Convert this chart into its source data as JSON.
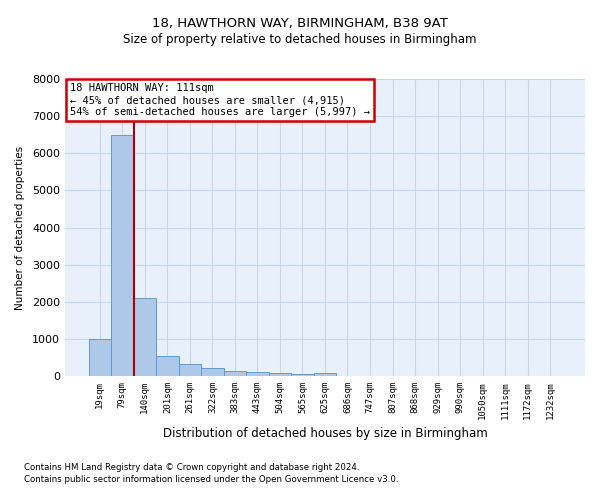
{
  "title1": "18, HAWTHORN WAY, BIRMINGHAM, B38 9AT",
  "title2": "Size of property relative to detached houses in Birmingham",
  "xlabel": "Distribution of detached houses by size in Birmingham",
  "ylabel": "Number of detached properties",
  "footnote1": "Contains HM Land Registry data © Crown copyright and database right 2024.",
  "footnote2": "Contains public sector information licensed under the Open Government Licence v3.0.",
  "annotation_title": "18 HAWTHORN WAY: 111sqm",
  "annotation_line1": "← 45% of detached houses are smaller (4,915)",
  "annotation_line2": "54% of semi-detached houses are larger (5,997) →",
  "bar_categories": [
    "19sqm",
    "79sqm",
    "140sqm",
    "201sqm",
    "261sqm",
    "322sqm",
    "383sqm",
    "443sqm",
    "504sqm",
    "565sqm",
    "625sqm",
    "686sqm",
    "747sqm",
    "807sqm",
    "868sqm",
    "929sqm",
    "990sqm",
    "1050sqm",
    "1111sqm",
    "1172sqm",
    "1232sqm"
  ],
  "bar_values": [
    1000,
    6500,
    2100,
    550,
    330,
    220,
    150,
    100,
    75,
    55,
    90,
    0,
    0,
    0,
    0,
    0,
    0,
    0,
    0,
    0,
    0
  ],
  "bar_color": "#aec9e8",
  "bar_edge_color": "#5b9bd5",
  "vline_color": "#aa0000",
  "vline_x_idx": 1,
  "ylim": [
    0,
    8000
  ],
  "yticks": [
    0,
    1000,
    2000,
    3000,
    4000,
    5000,
    6000,
    7000,
    8000
  ],
  "annotation_box_edge_color": "#cc0000",
  "grid_color": "#c8d8ea",
  "bg_color": "#e8f0fb"
}
